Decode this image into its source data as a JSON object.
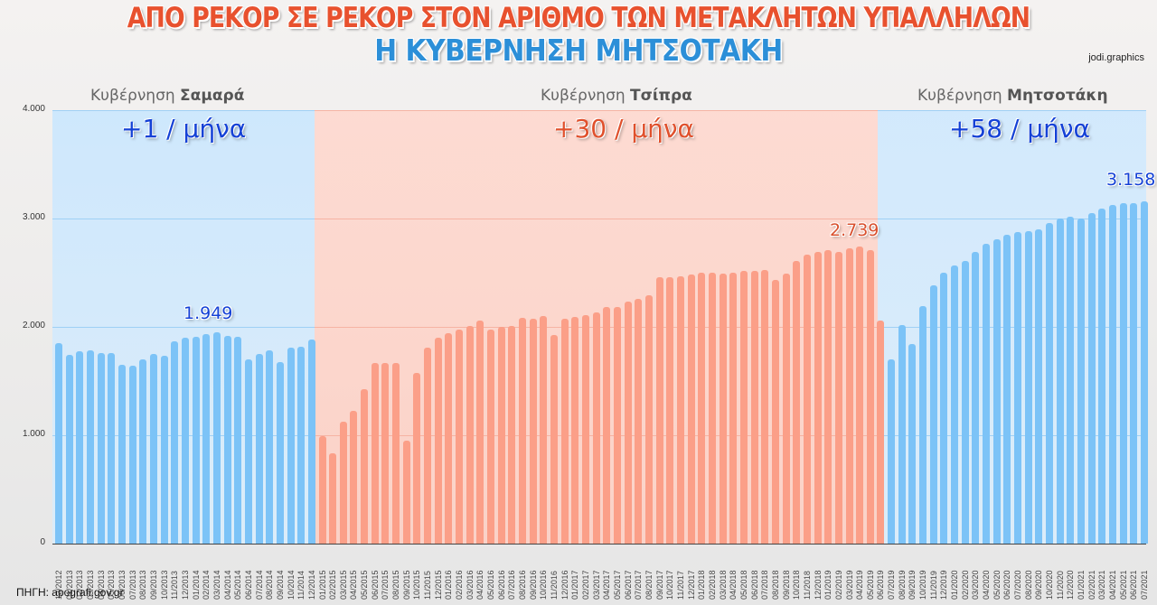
{
  "header": {
    "title_line1": "ΑΠΟ ΡΕΚΟΡ ΣΕ ΡΕΚΟΡ ΣΤΟΝ ΑΡΙΘΜΟ ΤΩΝ ΜΕΤΑΚΛΗΤΩΝ ΥΠΑΛΛΗΛΩΝ",
    "title_line2": "Η ΚΥΒΕΡΝΗΣΗ ΜΗΤΣΟΤΑΚΗ",
    "credit": "jodi.graphics"
  },
  "governments": [
    {
      "prefix": "Κυβέρνηση ",
      "name": "Σαμαρά",
      "rate": "+1 / μήνα",
      "peak": "1.949"
    },
    {
      "prefix": "Κυβέρνηση ",
      "name": "Τσίπρα",
      "rate": "+30 / μήνα",
      "peak": "2.739"
    },
    {
      "prefix": "Κυβέρνηση ",
      "name": "Μητσοτάκη",
      "rate": "+58 / μήνα",
      "peak": "3.158"
    }
  ],
  "footer": {
    "source": "ΠΗΓΗ: apografi.gov.gr"
  },
  "colors": {
    "samaras": "#7cc3f7",
    "tsipras": "#fb9f88",
    "mitsotakis": "#7cc3f7",
    "title_red": "#e8512e",
    "title_blue": "#2c8fd8"
  },
  "chart_data": {
    "type": "bar",
    "title": "ΑΠΟ ΡΕΚΟΡ ΣΕ ΡΕΚΟΡ ΣΤΟΝ ΑΡΙΘΜΟ ΤΩΝ ΜΕΤΑΚΛΗΤΩΝ ΥΠΑΛΛΗΛΩΝ",
    "subtitle": "Η ΚΥΒΕΡΝΗΣΗ ΜΗΤΣΟΤΑΚΗ",
    "xlabel": "",
    "ylabel": "",
    "ylim": [
      0,
      4000
    ],
    "yticks": [
      "0",
      "1.000",
      "2.000",
      "3.000",
      "4.000"
    ],
    "grid": true,
    "annotations": [
      "1.949",
      "2.739",
      "3.158",
      "+1 / μήνα",
      "+30 / μήνα",
      "+58 / μήνα"
    ],
    "series": [
      {
        "name": "Κυβέρνηση Σαμαρά",
        "categories": [
          "12/2012",
          "01/2013",
          "02/2013",
          "03/2013",
          "04/2013",
          "05/2013",
          "06/2013",
          "07/2013",
          "08/2013",
          "09/2013",
          "10/2013",
          "11/2013",
          "12/2013",
          "01/2014",
          "02/2014",
          "03/2014",
          "04/2014",
          "05/2014",
          "06/2014",
          "07/2014",
          "08/2014",
          "09/2014",
          "10/2014",
          "11/2014",
          "12/2014"
        ],
        "values": [
          1850,
          1742,
          1775,
          1783,
          1758,
          1758,
          1650,
          1642,
          1700,
          1750,
          1733,
          1867,
          1900,
          1908,
          1933,
          1949,
          1917,
          1908,
          1700,
          1750,
          1783,
          1675,
          1808,
          1817,
          1883
        ]
      },
      {
        "name": "Κυβέρνηση Τσίπρα",
        "categories": [
          "01/2015",
          "02/2015",
          "03/2015",
          "04/2015",
          "05/2015",
          "06/2015",
          "07/2015",
          "08/2015",
          "09/2015",
          "10/2015",
          "11/2015",
          "12/2015",
          "01/2016",
          "02/2016",
          "03/2016",
          "04/2016",
          "05/2016",
          "06/2016",
          "07/2016",
          "08/2016",
          "09/2016",
          "10/2016",
          "11/2016",
          "12/2016",
          "01/2017",
          "02/2017",
          "03/2017",
          "04/2017",
          "05/2017",
          "06/2017",
          "07/2017",
          "08/2017",
          "09/2017",
          "10/2017",
          "11/2017",
          "12/2017",
          "01/2018",
          "02/2018",
          "03/2018",
          "04/2018",
          "05/2018",
          "06/2018",
          "07/2018",
          "08/2018",
          "09/2018",
          "10/2018",
          "11/2018",
          "12/2018",
          "01/2019",
          "02/2019",
          "03/2019",
          "04/2019",
          "05/2019",
          "06/2019"
        ],
        "values": [
          992,
          833,
          1125,
          1225,
          1425,
          1667,
          1667,
          1667,
          950,
          1575,
          1808,
          1900,
          1942,
          1975,
          2008,
          2058,
          1975,
          2000,
          2008,
          2083,
          2075,
          2100,
          1925,
          2075,
          2092,
          2108,
          2133,
          2183,
          2183,
          2233,
          2258,
          2292,
          2458,
          2458,
          2467,
          2483,
          2500,
          2500,
          2492,
          2500,
          2517,
          2517,
          2525,
          2433,
          2492,
          2608,
          2667,
          2692,
          2708,
          2692,
          2725,
          2739,
          2708,
          2058
        ]
      },
      {
        "name": "Κυβέρνηση Μητσοτάκη",
        "categories": [
          "07/2019",
          "08/2019",
          "09/2019",
          "10/2019",
          "11/2019",
          "12/2019",
          "01/2020",
          "02/2020",
          "03/2020",
          "04/2020",
          "05/2020",
          "06/2020",
          "07/2020",
          "08/2020",
          "09/2020",
          "10/2020",
          "11/2020",
          "12/2020",
          "01/2021",
          "02/2021",
          "03/2021",
          "04/2021",
          "05/2021",
          "06/2021",
          "07/2021"
        ],
        "values": [
          1700,
          2017,
          1842,
          2192,
          2383,
          2500,
          2567,
          2608,
          2692,
          2767,
          2808,
          2850,
          2875,
          2883,
          2900,
          2958,
          3000,
          3017,
          3000,
          3050,
          3092,
          3125,
          3142,
          3142,
          3158
        ]
      }
    ]
  }
}
